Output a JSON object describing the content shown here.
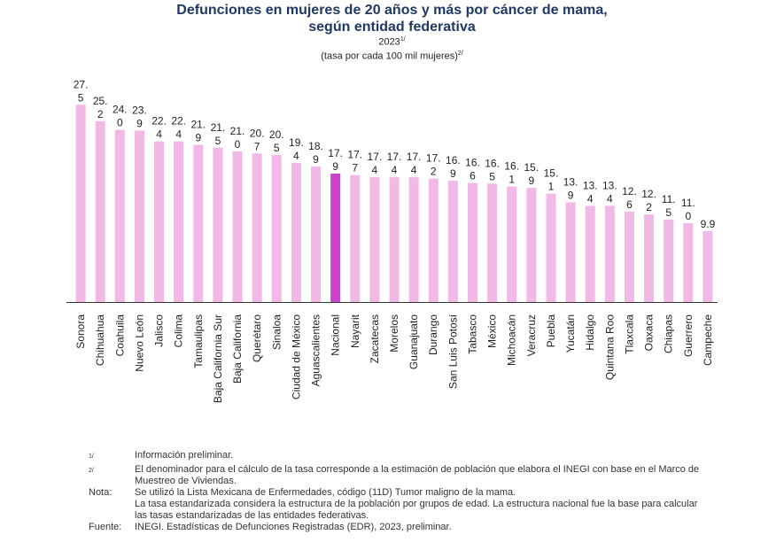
{
  "header": {
    "title_line1": "Defunciones en mujeres de 20 años y más por cáncer de mama,",
    "title_line2": "según entidad federativa",
    "year": "2023",
    "year_sup": "1/",
    "units": "(tasa por cada 100 mil mujeres)",
    "units_sup": "2/"
  },
  "colors": {
    "bar": "#f2b8e6",
    "highlight": "#cc44cc",
    "axis": "#333333"
  },
  "chart_data": {
    "type": "bar",
    "title": "Defunciones en mujeres de 20 años y más por cáncer de mama, según entidad federativa",
    "ylabel": "tasa por cada 100 mil mujeres",
    "ylim": [
      0,
      30
    ],
    "highlight": "Nacional",
    "categories": [
      "Sonora",
      "Chihuahua",
      "Coahuila",
      "Nuevo León",
      "Jalisco",
      "Colima",
      "Tamaulipas",
      "Baja California Sur",
      "Baja California",
      "Querétaro",
      "Sinaloa",
      "Ciudad de México",
      "Aguascalientes",
      "Nacional",
      "Nayarit",
      "Zacatecas",
      "Morelos",
      "Guanajuato",
      "Durango",
      "San Luis Potosí",
      "Tabasco",
      "México",
      "Michoacán",
      "Veracruz",
      "Puebla",
      "Yucatán",
      "Hidalgo",
      "Quintana Roo",
      "Tlaxcala",
      "Oaxaca",
      "Chiapas",
      "Guerrero",
      "Campeche"
    ],
    "values": [
      27.5,
      25.2,
      24.0,
      23.9,
      22.4,
      22.4,
      21.9,
      21.5,
      21.0,
      20.7,
      20.5,
      19.4,
      18.9,
      17.9,
      17.7,
      17.4,
      17.4,
      17.4,
      17.2,
      16.9,
      16.6,
      16.5,
      16.1,
      15.9,
      15.1,
      13.9,
      13.4,
      13.4,
      12.6,
      12.2,
      11.5,
      11.0,
      9.9
    ],
    "labels_line1": [
      "27.",
      "25.",
      "24.",
      "23.",
      "22.",
      "22.",
      "21.",
      "21.",
      "21.",
      "20.",
      "20.",
      "19.",
      "18.",
      "17.",
      "17.",
      "17.",
      "17.",
      "17.",
      "17.",
      "16.",
      "16.",
      "16.",
      "16.",
      "15.",
      "15.",
      "13.",
      "13.",
      "13.",
      "12.",
      "12.",
      "11.",
      "11.",
      "9.9"
    ],
    "labels_line2": [
      "5",
      "2",
      "0",
      "9",
      "4",
      "4",
      "9",
      "5",
      "0",
      "7",
      "5",
      "4",
      "9",
      "9",
      "7",
      "4",
      "4",
      "4",
      "2",
      "9",
      "6",
      "5",
      "1",
      "9",
      "1",
      "9",
      "4",
      "4",
      "6",
      "2",
      "5",
      "0",
      ""
    ]
  },
  "notes": [
    {
      "label": "1/",
      "text": "Información preliminar."
    },
    {
      "label": "2/",
      "text": "El denominador para el cálculo de la tasa corresponde a la estimación de población que elabora el INEGI con base en el Marco de Muestreo de Viviendas."
    },
    {
      "label": "Nota:",
      "text": "Se utilizó la Lista Mexicana de Enfermedades, código (11D) Tumor maligno de la mama."
    },
    {
      "label": "",
      "text": "La tasa estandarizada considera la estructura de la población por grupos de edad. La estructura nacional fue la base para calcular las tasas estandarizadas de las entidades federativas."
    },
    {
      "label": "Fuente:",
      "text": "INEGI. Estadísticas de Defunciones Registradas (EDR), 2023, preliminar."
    }
  ]
}
